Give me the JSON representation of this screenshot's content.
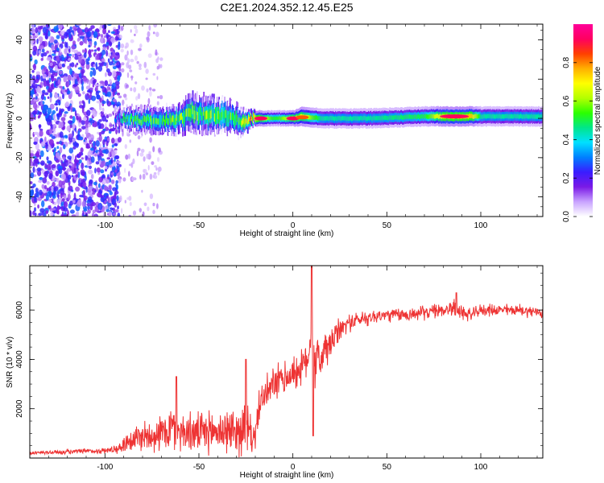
{
  "figure_title": "C2E1.2024.352.12.45.E25",
  "chart_data": [
    {
      "type": "heatmap",
      "xlabel": "Height of straight line (km)",
      "ylabel": "Frequency (Hz)",
      "xlim": [
        -140,
        133
      ],
      "ylim": [
        -50,
        48
      ],
      "xticks": [
        -100,
        -50,
        0,
        50,
        100
      ],
      "yticks": [
        -40,
        -20,
        0,
        20,
        40
      ],
      "colorbar": {
        "label": "Normalized spectral amplitude",
        "range": [
          0,
          1
        ],
        "ticks": [
          0.0,
          0.2,
          0.4,
          0.6,
          0.8
        ],
        "colors": [
          "#ffffff",
          "#c9a3ff",
          "#7a1ae6",
          "#3a1cff",
          "#0080ff",
          "#00e0ff",
          "#00e68a",
          "#2bff00",
          "#b3ff00",
          "#ffff00",
          "#ffb000",
          "#ff4000",
          "#ff0060",
          "#ff0099"
        ]
      },
      "noise_region": {
        "x": [
          -140,
          -92
        ],
        "level": 0.25
      },
      "scatter_region": {
        "x": [
          -92,
          -70
        ],
        "level": 0.08
      },
      "ridge": [
        {
          "x": -95,
          "center": 0,
          "width": 4,
          "amp": 0.3
        },
        {
          "x": -90,
          "center": 0,
          "width": 6,
          "amp": 0.45
        },
        {
          "x": -80,
          "center": -1,
          "width": 7,
          "amp": 0.5
        },
        {
          "x": -70,
          "center": -1,
          "width": 7,
          "amp": 0.5
        },
        {
          "x": -60,
          "center": 0,
          "width": 8,
          "amp": 0.55
        },
        {
          "x": -55,
          "center": 3,
          "width": 10,
          "amp": 0.55
        },
        {
          "x": -45,
          "center": 2,
          "width": 10,
          "amp": 0.55
        },
        {
          "x": -35,
          "center": 1,
          "width": 9,
          "amp": 0.55
        },
        {
          "x": -28,
          "center": -2,
          "width": 8,
          "amp": 0.55
        },
        {
          "x": -22,
          "center": 0,
          "width": 4,
          "amp": 0.85
        },
        {
          "x": -10,
          "center": 0,
          "width": 4,
          "amp": 0.5
        },
        {
          "x": 0,
          "center": 0,
          "width": 4,
          "amp": 0.7
        },
        {
          "x": 5,
          "center": 1,
          "width": 5,
          "amp": 0.7
        },
        {
          "x": 15,
          "center": 0,
          "width": 5,
          "amp": 0.45
        },
        {
          "x": 40,
          "center": 0,
          "width": 5,
          "amp": 0.45
        },
        {
          "x": 70,
          "center": 1,
          "width": 5,
          "amp": 0.5
        },
        {
          "x": 80,
          "center": 1,
          "width": 5,
          "amp": 0.75
        },
        {
          "x": 95,
          "center": 1,
          "width": 5,
          "amp": 0.75
        },
        {
          "x": 100,
          "center": 1,
          "width": 5,
          "amp": 0.45
        },
        {
          "x": 133,
          "center": 1,
          "width": 5,
          "amp": 0.45
        }
      ],
      "hot_spots": [
        {
          "x": -17,
          "y": 0,
          "amp": 1.0
        },
        {
          "x": 0,
          "y": 0,
          "amp": 1.0
        },
        {
          "x": 5,
          "y": 0.5,
          "amp": 0.9
        },
        {
          "x": 86,
          "y": 1,
          "amp": 1.0
        }
      ]
    },
    {
      "type": "line",
      "xlabel": "Height of straight line (km)",
      "ylabel": "SNR (10 * v/v)",
      "xlim": [
        -140,
        133
      ],
      "ylim": [
        0,
        7800
      ],
      "xticks": [
        -100,
        -50,
        0,
        50,
        100
      ],
      "yticks": [
        2000,
        4000,
        6000
      ],
      "line_color": "#ee3333",
      "series": [
        {
          "x": [
            -140,
            -120,
            -100,
            -92,
            -88,
            -80,
            -70,
            -65,
            -60,
            -50,
            -40,
            -30,
            -25,
            -20,
            -18,
            -15,
            -10,
            -5,
            0,
            5,
            8,
            10,
            12,
            15,
            20,
            25,
            30,
            40,
            50,
            60,
            70,
            80,
            85,
            90,
            95,
            100,
            110,
            120,
            133
          ],
          "y": [
            200,
            250,
            300,
            400,
            700,
            900,
            1000,
            1200,
            1100,
            1000,
            1100,
            1100,
            1200,
            800,
            2200,
            2500,
            3000,
            3200,
            3400,
            3700,
            4000,
            5500,
            3800,
            4100,
            4600,
            5200,
            5500,
            5700,
            5800,
            5800,
            5900,
            6000,
            6100,
            5900,
            5800,
            6000,
            6000,
            6000,
            5900
          ],
          "noise": [
            100,
            120,
            150,
            250,
            600,
            800,
            900,
            1300,
            1000,
            1000,
            1100,
            1200,
            1500,
            600,
            800,
            900,
            900,
            900,
            900,
            900,
            900,
            1400,
            1400,
            1200,
            900,
            600,
            450,
            400,
            350,
            350,
            350,
            350,
            450,
            400,
            300,
            300,
            300,
            300,
            300
          ]
        }
      ],
      "spikes": [
        {
          "x": 10,
          "y": 7800
        },
        {
          "x": 10.8,
          "y": 900
        },
        {
          "x": -25,
          "y": 4000
        },
        {
          "x": -62,
          "y": 3300
        },
        {
          "x": 87,
          "y": 6700
        }
      ]
    }
  ]
}
